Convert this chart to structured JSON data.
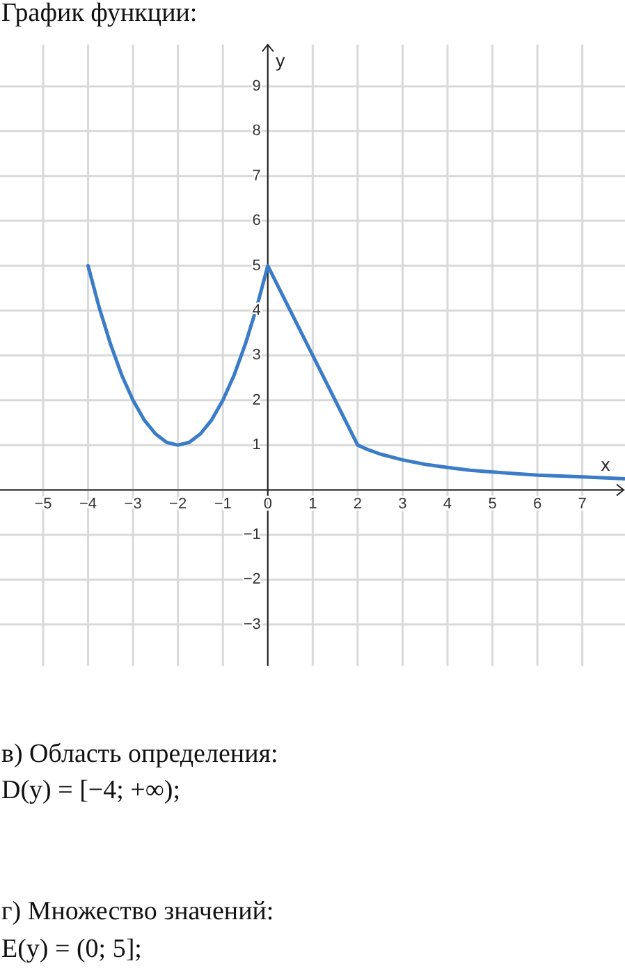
{
  "chart_data": {
    "type": "line",
    "title": "График функции:",
    "xlabel": "x",
    "ylabel": "y",
    "x": [
      -4,
      -3.75,
      -3.5,
      -3.25,
      -3,
      -2.75,
      -2.5,
      -2.25,
      -2,
      -1.75,
      -1.5,
      -1.25,
      -1,
      -0.75,
      -0.5,
      -0.25,
      0,
      1,
      2,
      2.25,
      2.5,
      3,
      3.5,
      4,
      4.5,
      5,
      6,
      7,
      7.95
    ],
    "values": [
      5,
      4.06,
      3.25,
      2.56,
      2,
      1.56,
      1.25,
      1.06,
      1,
      1.06,
      1.25,
      1.56,
      2,
      2.56,
      3.25,
      4.06,
      5,
      3,
      1,
      0.89,
      0.8,
      0.67,
      0.57,
      0.5,
      0.44,
      0.4,
      0.33,
      0.29,
      0.25
    ],
    "color": "#3a7cc7",
    "xlim": [
      -5.96,
      7.95
    ],
    "ylim": [
      -3.92,
      9.93
    ],
    "xticks": [
      {
        "value": -5,
        "label": "−5"
      },
      {
        "value": -4,
        "label": "−4"
      },
      {
        "value": -3,
        "label": "−3"
      },
      {
        "value": -2,
        "label": "−2"
      },
      {
        "value": -1,
        "label": "−1"
      },
      0,
      1,
      2,
      3,
      4,
      5,
      6,
      7
    ],
    "yticks": [
      {
        "value": -3,
        "label": "−3"
      },
      {
        "value": -2,
        "label": "−2"
      },
      {
        "value": -1,
        "label": "−1"
      },
      {
        "value": 0,
        "label": null
      },
      1,
      2,
      3,
      4,
      5,
      6,
      7,
      8,
      9
    ],
    "grid": true,
    "marker": "none",
    "line_style": "solid",
    "annotations": [
      "в) Область определения:",
      "D(y) = [−4; +∞);",
      "г) Множество значений:",
      "E(y) = (0; 5];"
    ]
  }
}
